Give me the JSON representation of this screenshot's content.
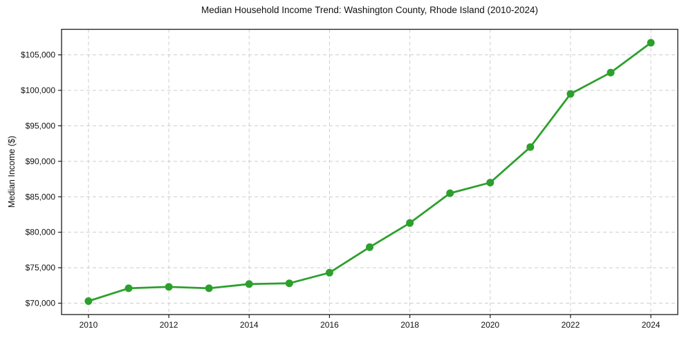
{
  "chart_data": {
    "type": "line",
    "title": "Median Household Income Trend: Washington County, Rhode Island (2010-2024)",
    "xlabel": "",
    "ylabel": "Median Income ($)",
    "x": [
      2010,
      2011,
      2012,
      2013,
      2014,
      2015,
      2016,
      2017,
      2018,
      2019,
      2020,
      2021,
      2022,
      2023,
      2024
    ],
    "values": [
      70300,
      72100,
      72300,
      72100,
      72700,
      72800,
      74300,
      77900,
      81300,
      85500,
      87000,
      92000,
      99500,
      102500,
      106700
    ],
    "series_name": "Median Household Income",
    "xlim": [
      2009.33,
      2024.67
    ],
    "ylim": [
      68400,
      108600
    ],
    "xticks": [
      2010,
      2012,
      2014,
      2016,
      2018,
      2020,
      2022,
      2024
    ],
    "xtick_labels": [
      "2010",
      "2012",
      "2014",
      "2016",
      "2018",
      "2020",
      "2022",
      "2024"
    ],
    "yticks": [
      70000,
      75000,
      80000,
      85000,
      90000,
      95000,
      100000,
      105000
    ],
    "ytick_labels": [
      "$70,000",
      "$75,000",
      "$80,000",
      "$85,000",
      "$90,000",
      "$95,000",
      "$100,000",
      "$105,000"
    ],
    "grid": true,
    "grid_style": "dashed",
    "legend": "none",
    "marker": "circle",
    "colors": {
      "line": "#2ca02c",
      "marker": "#2ca02c",
      "grid": "#cccccc",
      "spine": "#1a1a1a",
      "text": "#111111",
      "background": "#ffffff"
    }
  }
}
